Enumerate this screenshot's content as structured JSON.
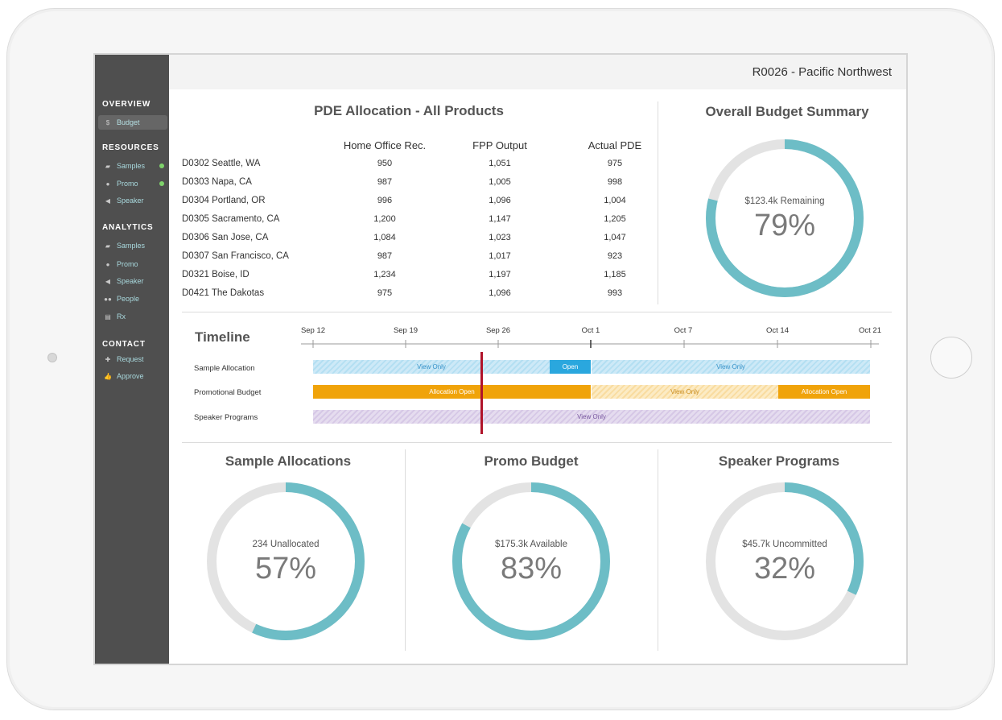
{
  "header": {
    "title": "R0026 - Pacific Northwest"
  },
  "sidebar": {
    "sections": [
      {
        "title": "OVERVIEW",
        "items": [
          {
            "label": "Budget",
            "icon": "dollar-icon",
            "active": true
          }
        ]
      },
      {
        "title": "RESOURCES",
        "items": [
          {
            "label": "Samples",
            "icon": "briefcase-icon",
            "status_dot": true
          },
          {
            "label": "Promo",
            "icon": "person-icon",
            "status_dot": true
          },
          {
            "label": "Speaker",
            "icon": "megaphone-icon"
          }
        ]
      },
      {
        "title": "ANALYTICS",
        "items": [
          {
            "label": "Samples",
            "icon": "briefcase-icon"
          },
          {
            "label": "Promo",
            "icon": "person-icon"
          },
          {
            "label": "Speaker",
            "icon": "megaphone-icon"
          },
          {
            "label": "People",
            "icon": "people-icon"
          },
          {
            "label": "Rx",
            "icon": "document-icon"
          }
        ]
      },
      {
        "title": "CONTACT",
        "items": [
          {
            "label": "Request",
            "icon": "plus-icon"
          },
          {
            "label": "Approve",
            "icon": "thumbs-up-icon"
          }
        ]
      }
    ]
  },
  "pde": {
    "title": "PDE Allocation - All Products",
    "columns": [
      "Home Office Rec.",
      "FPP Output",
      "Actual PDE"
    ],
    "rows": [
      {
        "name": "D0302 Seattle, WA",
        "values": [
          "950",
          "1,051",
          "975"
        ]
      },
      {
        "name": "D0303 Napa, CA",
        "values": [
          "987",
          "1,005",
          "998"
        ]
      },
      {
        "name": "D0304 Portland, OR",
        "values": [
          "996",
          "1,096",
          "1,004"
        ]
      },
      {
        "name": "D0305 Sacramento, CA",
        "values": [
          "1,200",
          "1,147",
          "1,205"
        ]
      },
      {
        "name": "D0306 San Jose, CA",
        "values": [
          "1,084",
          "1,023",
          "1,047"
        ]
      },
      {
        "name": "D0307 San Francisco, CA",
        "values": [
          "987",
          "1,017",
          "923"
        ]
      },
      {
        "name": "D0321 Boise, ID",
        "values": [
          "1,234",
          "1,197",
          "1,185"
        ]
      },
      {
        "name": "D0421 The Dakotas",
        "values": [
          "975",
          "1,096",
          "993"
        ]
      }
    ]
  },
  "overall": {
    "title": "Overall Budget Summary",
    "label": "$123.4k Remaining",
    "percent_text": "79%",
    "fraction": 0.79
  },
  "timeline": {
    "title": "Timeline",
    "dates": [
      "Sep 12",
      "Sep 19",
      "Sep 26",
      "Oct 1",
      "Oct 7",
      "Oct 14",
      "Oct 21"
    ],
    "rows": [
      {
        "label": "Sample Allocation",
        "segments": [
          {
            "text": "View Only",
            "style": "view-blue"
          },
          {
            "text": "Open",
            "style": "open-blue"
          },
          {
            "text": "View Only",
            "style": "view-blue"
          }
        ]
      },
      {
        "label": "Promotional Budget",
        "segments": [
          {
            "text": "Allocation Open",
            "style": "open-orange"
          },
          {
            "text": "View Only",
            "style": "view-orange"
          },
          {
            "text": "Allocation Open",
            "style": "open-orange"
          }
        ]
      },
      {
        "label": "Speaker Programs",
        "segments": [
          {
            "text": "View Only",
            "style": "view-purple"
          }
        ]
      }
    ]
  },
  "summaries": [
    {
      "title": "Sample Allocations",
      "label": "234 Unallocated",
      "percent_text": "57%",
      "fraction": 0.57
    },
    {
      "title": "Promo Budget",
      "label": "$175.3k Available",
      "percent_text": "83%",
      "fraction": 0.83
    },
    {
      "title": "Speaker Programs",
      "label": "$45.7k Uncommitted",
      "percent_text": "32%",
      "fraction": 0.32
    }
  ],
  "colors": {
    "accent": "#6dbdc6",
    "track": "#e3e3e3",
    "today_marker": "#b0132a"
  }
}
